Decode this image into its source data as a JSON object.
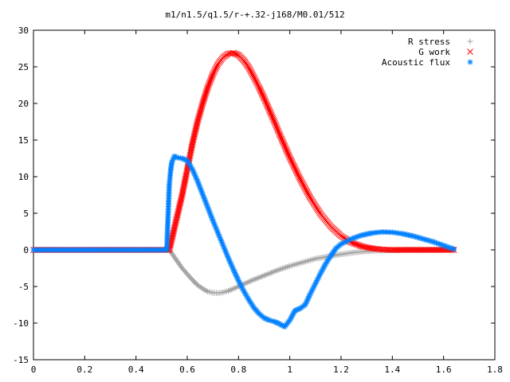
{
  "chart_data": {
    "type": "scatter",
    "title": "m1/n1.5/q1.5/r-+.32-j168/M0.01/512",
    "xlabel": "",
    "ylabel": "",
    "xlim": [
      0,
      1.8
    ],
    "ylim": [
      -15,
      30
    ],
    "x_ticks": [
      "0",
      "0.2",
      "0.4",
      "0.6",
      "0.8",
      "1",
      "1.2",
      "1.4",
      "1.6",
      "1.8"
    ],
    "y_ticks": [
      "-15",
      "-10",
      "-5",
      "0",
      "5",
      "10",
      "15",
      "20",
      "25",
      "30"
    ],
    "grid": false,
    "legend_position": "top-right",
    "series": [
      {
        "name": "R stress",
        "marker": "+",
        "color": "#a0a0a0",
        "points": [
          [
            0.0,
            0
          ],
          [
            0.1,
            0
          ],
          [
            0.2,
            0
          ],
          [
            0.3,
            0
          ],
          [
            0.4,
            0
          ],
          [
            0.53,
            0
          ],
          [
            0.54,
            -0.5
          ],
          [
            0.56,
            -1.5
          ],
          [
            0.58,
            -2.5
          ],
          [
            0.6,
            -3.3
          ],
          [
            0.62,
            -4.1
          ],
          [
            0.64,
            -4.8
          ],
          [
            0.66,
            -5.3
          ],
          [
            0.68,
            -5.7
          ],
          [
            0.7,
            -5.85
          ],
          [
            0.72,
            -5.9
          ],
          [
            0.74,
            -5.8
          ],
          [
            0.76,
            -5.6
          ],
          [
            0.8,
            -5.0
          ],
          [
            0.85,
            -4.2
          ],
          [
            0.9,
            -3.5
          ],
          [
            0.95,
            -2.8
          ],
          [
            1.0,
            -2.2
          ],
          [
            1.05,
            -1.7
          ],
          [
            1.1,
            -1.2
          ],
          [
            1.15,
            -0.9
          ],
          [
            1.2,
            -0.6
          ],
          [
            1.25,
            -0.35
          ],
          [
            1.3,
            -0.2
          ],
          [
            1.35,
            -0.1
          ],
          [
            1.4,
            -0.05
          ],
          [
            1.45,
            0
          ],
          [
            1.5,
            0
          ],
          [
            1.55,
            0
          ],
          [
            1.6,
            0
          ],
          [
            1.64,
            0
          ]
        ]
      },
      {
        "name": "G work",
        "marker": "x",
        "color": "#ff0000",
        "points": [
          [
            0.0,
            0
          ],
          [
            0.1,
            0
          ],
          [
            0.2,
            0
          ],
          [
            0.3,
            0
          ],
          [
            0.4,
            0
          ],
          [
            0.53,
            0
          ],
          [
            0.54,
            1.5
          ],
          [
            0.56,
            4.5
          ],
          [
            0.58,
            7.5
          ],
          [
            0.6,
            11
          ],
          [
            0.62,
            14.5
          ],
          [
            0.64,
            17.5
          ],
          [
            0.66,
            20
          ],
          [
            0.68,
            22.2
          ],
          [
            0.7,
            24
          ],
          [
            0.72,
            25.4
          ],
          [
            0.74,
            26.3
          ],
          [
            0.76,
            26.8
          ],
          [
            0.78,
            26.9
          ],
          [
            0.8,
            26.6
          ],
          [
            0.82,
            25.9
          ],
          [
            0.84,
            24.9
          ],
          [
            0.86,
            23.6
          ],
          [
            0.88,
            22.2
          ],
          [
            0.9,
            20.7
          ],
          [
            0.92,
            19.1
          ],
          [
            0.94,
            17.5
          ],
          [
            0.96,
            15.8
          ],
          [
            0.98,
            14.2
          ],
          [
            1.0,
            12.6
          ],
          [
            1.04,
            9.7
          ],
          [
            1.08,
            7.1
          ],
          [
            1.12,
            4.9
          ],
          [
            1.16,
            3.2
          ],
          [
            1.2,
            1.9
          ],
          [
            1.24,
            1.0
          ],
          [
            1.28,
            0.5
          ],
          [
            1.32,
            0.2
          ],
          [
            1.36,
            0.05
          ],
          [
            1.4,
            0
          ],
          [
            1.5,
            0
          ],
          [
            1.6,
            0
          ],
          [
            1.64,
            0
          ]
        ]
      },
      {
        "name": "Acoustic flux",
        "marker": "*",
        "color": "#0080ff",
        "points": [
          [
            0.0,
            0
          ],
          [
            0.1,
            0
          ],
          [
            0.2,
            0
          ],
          [
            0.3,
            0
          ],
          [
            0.4,
            0
          ],
          [
            0.52,
            0
          ],
          [
            0.525,
            4.6
          ],
          [
            0.53,
            9
          ],
          [
            0.535,
            10.8
          ],
          [
            0.54,
            12
          ],
          [
            0.55,
            12.8
          ],
          [
            0.56,
            12.6
          ],
          [
            0.58,
            12.5
          ],
          [
            0.6,
            12.2
          ],
          [
            0.62,
            11
          ],
          [
            0.64,
            9.4
          ],
          [
            0.66,
            7.6
          ],
          [
            0.68,
            5.8
          ],
          [
            0.7,
            4
          ],
          [
            0.72,
            2.3
          ],
          [
            0.74,
            0.6
          ],
          [
            0.76,
            -1.1
          ],
          [
            0.78,
            -2.7
          ],
          [
            0.8,
            -4.2
          ],
          [
            0.82,
            -5.6
          ],
          [
            0.84,
            -6.8
          ],
          [
            0.86,
            -7.9
          ],
          [
            0.88,
            -8.7
          ],
          [
            0.9,
            -9.3
          ],
          [
            0.92,
            -9.6
          ],
          [
            0.94,
            -9.8
          ],
          [
            0.96,
            -10.1
          ],
          [
            0.98,
            -10.5
          ],
          [
            1.0,
            -9.6
          ],
          [
            1.02,
            -8.3
          ],
          [
            1.04,
            -8.0
          ],
          [
            1.06,
            -7.5
          ],
          [
            1.08,
            -6.0
          ],
          [
            1.1,
            -4.6
          ],
          [
            1.12,
            -3.2
          ],
          [
            1.14,
            -1.9
          ],
          [
            1.16,
            -0.8
          ],
          [
            1.18,
            0.2
          ],
          [
            1.2,
            0.8
          ],
          [
            1.24,
            1.5
          ],
          [
            1.28,
            2.0
          ],
          [
            1.32,
            2.3
          ],
          [
            1.36,
            2.45
          ],
          [
            1.4,
            2.4
          ],
          [
            1.44,
            2.2
          ],
          [
            1.48,
            1.9
          ],
          [
            1.52,
            1.5
          ],
          [
            1.56,
            1.1
          ],
          [
            1.6,
            0.6
          ],
          [
            1.64,
            0.1
          ]
        ]
      }
    ]
  }
}
